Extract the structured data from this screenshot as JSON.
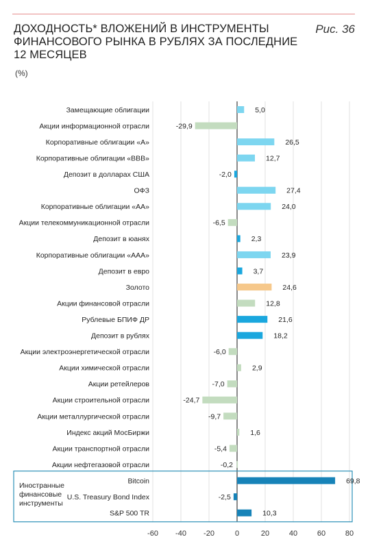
{
  "header": {
    "title": "ДОХОДНОСТЬ* ВЛОЖЕНИЙ В ИНСТРУМЕНТЫ ФИНАНСОВОГО РЫНКА В РУБЛЯХ ЗА ПОСЛЕДНИЕ 12 МЕСЯЦЕВ",
    "figure_label": "Рис. 36",
    "unit": "(%)"
  },
  "colors": {
    "light_blue": "#7dd6f0",
    "blue": "#1aa7de",
    "dark_blue": "#1783b8",
    "green": "#c3dcbf",
    "gold": "#f6c88b",
    "box": "#2a8fb7"
  },
  "chart_data": {
    "type": "bar",
    "orientation": "horizontal",
    "title": "ДОХОДНОСТЬ* ВЛОЖЕНИЙ В ИНСТРУМЕНТЫ ФИНАНСОВОГО РЫНКА В РУБЛЯХ ЗА ПОСЛЕДНИЕ 12 МЕСЯЦЕВ",
    "xlabel": "",
    "ylabel": "",
    "xlim": [
      -60,
      80
    ],
    "xticks": [
      -60,
      -40,
      -20,
      0,
      20,
      40,
      60,
      80
    ],
    "grid": true,
    "categories": [
      "Замещающие облигации",
      "Акции информационной отрасли",
      "Корпоративные облигации «А»",
      "Корпоративные облигации «ВВВ»",
      "Депозит в долларах США",
      "ОФЗ",
      "Корпоративные облигации «АА»",
      "Акции телекоммуникационной отрасли",
      "Депозит в юанях",
      "Корпоративные облигации «ААА»",
      "Депозит в евро",
      "Золото",
      "Акции финансовой отрасли",
      "Рублевые БПИФ ДР",
      "Депозит в рублях",
      "Акции электроэнергетической отрасли",
      "Акции химической отрасли",
      "Акции ретейлеров",
      "Акции строительной отрасли",
      "Акции металлургической отрасли",
      "Индекс акций МосБиржи",
      "Акции транспортной отрасли",
      "Акции нефтегазовой отрасли",
      "Bitcoin",
      "U.S. Treasury Bond Index",
      "S&P 500 TR"
    ],
    "values": [
      5.0,
      -29.9,
      26.5,
      12.7,
      -2.0,
      27.4,
      24.0,
      -6.5,
      2.3,
      23.9,
      3.7,
      24.6,
      12.8,
      21.6,
      18.2,
      -6.0,
      2.9,
      -7.0,
      -24.7,
      -9.7,
      1.6,
      -5.4,
      -0.2,
      69.8,
      -2.5,
      10.3
    ],
    "value_labels": [
      "5,0",
      "-29,9",
      "26,5",
      "12,7",
      "-2,0",
      "27,4",
      "24,0",
      "-6,5",
      "2,3",
      "23,9",
      "3,7",
      "24,6",
      "12,8",
      "21,6",
      "18,2",
      "-6,0",
      "2,9",
      "-7,0",
      "-24,7",
      "-9,7",
      "1,6",
      "-5,4",
      "-0,2",
      "69,8",
      "-2,5",
      "10,3"
    ],
    "bar_colors": [
      "light_blue",
      "green",
      "light_blue",
      "light_blue",
      "blue",
      "light_blue",
      "light_blue",
      "green",
      "blue",
      "light_blue",
      "blue",
      "gold",
      "green",
      "blue",
      "blue",
      "green",
      "green",
      "green",
      "green",
      "green",
      "green",
      "green",
      "green",
      "dark_blue",
      "dark_blue",
      "dark_blue"
    ],
    "group": {
      "label": "Иностранные финансовые инструменты",
      "label_lines": [
        "Иностранные",
        "финансовые",
        "инструменты"
      ],
      "from_index": 23,
      "to_index": 25
    }
  }
}
